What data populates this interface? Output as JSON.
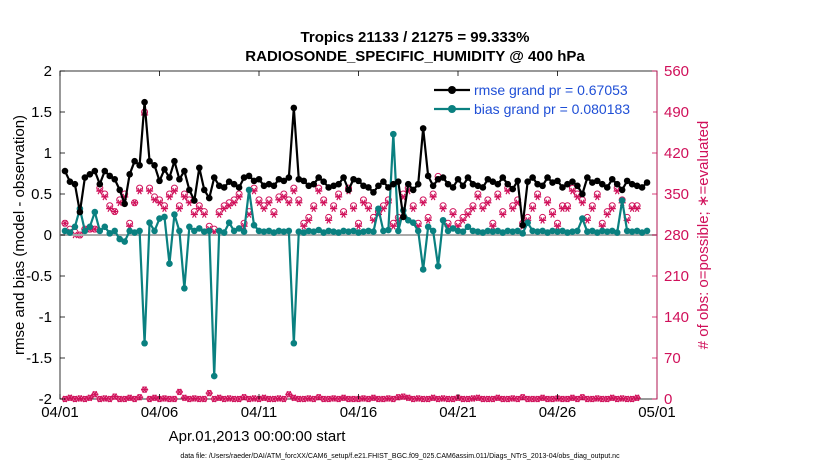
{
  "colors": {
    "rmse": "#000000",
    "bias": "#0a8080",
    "obs": "#d0105a",
    "zero_line": "#aaaaaa",
    "legend_text": "#1f4fd6",
    "right_axis": "#d0105a"
  },
  "chart_data": {
    "type": "line",
    "title": "Tropics 21133 / 21275 = 99.333%",
    "subtitle": "RADIOSONDE_SPECIFIC_HUMIDITY @ 400 hPa",
    "xlabel": "Apr.01,2013 00:00:00 start",
    "ylabel": "rmse and bias (model - observation)",
    "y2label": "# of obs: o=possible; ∗=evaluated",
    "xlim": [
      0,
      30
    ],
    "ylim": [
      -2,
      2
    ],
    "y2lim": [
      0,
      560
    ],
    "x_ticks": [
      0,
      5,
      10,
      15,
      20,
      25,
      30
    ],
    "x_tick_labels": [
      "04/01",
      "04/06",
      "04/11",
      "04/16",
      "04/21",
      "04/26",
      "05/01"
    ],
    "y_ticks": [
      -2,
      -1.5,
      -1,
      -0.5,
      0,
      0.5,
      1,
      1.5,
      2
    ],
    "y_tick_labels": [
      "-2",
      "-1.5",
      "-1",
      "-0.5",
      "0",
      "0.5",
      "1",
      "1.5",
      "2"
    ],
    "y2_ticks": [
      0,
      70,
      140,
      210,
      280,
      350,
      420,
      490,
      560
    ],
    "y2_tick_labels": [
      "0",
      "70",
      "140",
      "210",
      "280",
      "350",
      "420",
      "490",
      "560"
    ],
    "legend": {
      "rmse": "rmse grand pr = 0.67053",
      "bias": "bias grand pr = 0.080183"
    },
    "x": [
      0.25,
      0.5,
      0.75,
      1,
      1.25,
      1.5,
      1.75,
      2,
      2.25,
      2.5,
      2.75,
      3,
      3.25,
      3.5,
      3.75,
      4,
      4.25,
      4.5,
      4.75,
      5,
      5.25,
      5.5,
      5.75,
      6,
      6.25,
      6.5,
      6.75,
      7,
      7.25,
      7.5,
      7.75,
      8,
      8.25,
      8.5,
      8.75,
      9,
      9.25,
      9.5,
      9.75,
      10,
      10.25,
      10.5,
      10.75,
      11,
      11.25,
      11.5,
      11.75,
      12,
      12.25,
      12.5,
      12.75,
      13,
      13.25,
      13.5,
      13.75,
      14,
      14.25,
      14.5,
      14.75,
      15,
      15.25,
      15.5,
      15.75,
      16,
      16.25,
      16.5,
      16.75,
      17,
      17.25,
      17.5,
      17.75,
      18,
      18.25,
      18.5,
      18.75,
      19,
      19.25,
      19.5,
      19.75,
      20,
      20.25,
      20.5,
      20.75,
      21,
      21.25,
      21.5,
      21.75,
      22,
      22.25,
      22.5,
      22.75,
      23,
      23.25,
      23.5,
      23.75,
      24,
      24.25,
      24.5,
      24.75,
      25,
      25.25,
      25.5,
      25.75,
      26,
      26.25,
      26.5,
      26.75,
      27,
      27.25,
      27.5,
      27.75,
      28,
      28.25,
      28.5,
      28.75,
      29,
      29.25,
      29.5
    ],
    "series": [
      {
        "name": "rmse",
        "values": [
          0.78,
          0.65,
          0.62,
          0.28,
          0.7,
          0.74,
          0.78,
          0.62,
          0.78,
          0.72,
          0.68,
          0.55,
          0.38,
          0.74,
          0.9,
          0.85,
          1.62,
          0.9,
          0.85,
          0.66,
          0.8,
          0.7,
          0.9,
          0.68,
          0.78,
          0.55,
          0.42,
          0.82,
          0.55,
          0.45,
          0.7,
          0.6,
          0.58,
          0.65,
          0.62,
          0.58,
          0.7,
          0.72,
          0.66,
          0.68,
          0.6,
          0.62,
          0.6,
          0.68,
          0.66,
          0.7,
          1.55,
          0.68,
          0.66,
          0.6,
          0.62,
          0.7,
          0.65,
          0.58,
          0.6,
          0.62,
          0.7,
          0.55,
          0.68,
          0.66,
          0.6,
          0.58,
          0.52,
          0.6,
          0.65,
          0.58,
          0.62,
          0.65,
          0.22,
          0.62,
          0.55,
          0.62,
          1.3,
          0.72,
          0.6,
          0.68,
          0.7,
          0.62,
          0.58,
          0.68,
          0.6,
          0.7,
          0.62,
          0.6,
          0.58,
          0.68,
          0.65,
          0.62,
          0.7,
          0.62,
          0.56,
          0.66,
          0.12,
          0.65,
          0.7,
          0.62,
          0.6,
          0.7,
          0.64,
          0.66,
          0.58,
          0.62,
          0.65,
          0.6,
          0.5,
          0.7,
          0.64,
          0.66,
          0.62,
          0.58,
          0.68,
          0.62,
          0.55,
          0.66,
          0.62,
          0.6,
          0.58,
          0.64
        ],
        "sizes_note": "x positions shared"
      },
      {
        "name": "bias",
        "values": [
          0.05,
          0.03,
          0.1,
          0.32,
          0.05,
          0.1,
          0.28,
          0.05,
          0.1,
          0.02,
          0.05,
          -0.05,
          -0.08,
          0.05,
          0.03,
          0.05,
          -1.32,
          0.15,
          0.05,
          0.2,
          0.22,
          -0.35,
          0.25,
          0.05,
          -0.65,
          0.1,
          0.05,
          0.08,
          0.04,
          0.05,
          -1.72,
          0.05,
          0.03,
          0.15,
          0.05,
          0.08,
          0.04,
          0.55,
          0.12,
          0.05,
          0.04,
          0.05,
          0.03,
          0.05,
          0.04,
          0.05,
          -1.32,
          0.04,
          0.03,
          0.05,
          0.04,
          0.06,
          0.03,
          0.05,
          0.04,
          0.03,
          0.05,
          0.04,
          0.05,
          0.03,
          0.04,
          0.05,
          0.04,
          0.32,
          0.05,
          0.06,
          1.23,
          0.05,
          0.3,
          0.18,
          0.15,
          0.05,
          -0.42,
          0.1,
          0.05,
          -0.38,
          0.18,
          0.05,
          0.08,
          0.05,
          0.04,
          0.1,
          0.05,
          0.04,
          0.03,
          0.05,
          0.04,
          0.05,
          0.03,
          0.05,
          0.04,
          0.05,
          0.02,
          0.15,
          0.05,
          0.04,
          0.05,
          0.03,
          0.05,
          0.04,
          0.05,
          0.03,
          0.04,
          0.05,
          0.2,
          0.04,
          0.05,
          0.03,
          0.05,
          0.04,
          0.05,
          0.03,
          0.42,
          0.05,
          0.04,
          0.05,
          0.03,
          0.05
        ],
        "sizes_note": "x positions shared"
      }
    ],
    "obs_possible": [
      300,
      290,
      285,
      280,
      290,
      290,
      290,
      360,
      350,
      330,
      320,
      340,
      350,
      300,
      335,
      360,
      490,
      360,
      345,
      340,
      330,
      350,
      360,
      330,
      350,
      340,
      320,
      330,
      320,
      295,
      290,
      320,
      330,
      335,
      340,
      350,
      300,
      320,
      360,
      340,
      330,
      340,
      320,
      345,
      350,
      340,
      360,
      340,
      300,
      310,
      330,
      360,
      340,
      310,
      330,
      350,
      320,
      360,
      330,
      300,
      340,
      330,
      310,
      320,
      330,
      340,
      300,
      310,
      350,
      360,
      330,
      300,
      340,
      310,
      350,
      380,
      330,
      300,
      320,
      300,
      310,
      320,
      330,
      350,
      330,
      340,
      300,
      350,
      320,
      360,
      330,
      340,
      300,
      310,
      330,
      350,
      310,
      340,
      320,
      300,
      330,
      330,
      360,
      350,
      340,
      310,
      330,
      350,
      300,
      320,
      330,
      360,
      340,
      310,
      330,
      330
    ],
    "obs_evaluated": [
      300,
      285,
      280,
      280,
      290,
      290,
      290,
      355,
      345,
      325,
      320,
      335,
      345,
      295,
      335,
      355,
      485,
      355,
      340,
      335,
      325,
      345,
      355,
      325,
      345,
      335,
      315,
      325,
      315,
      290,
      285,
      315,
      325,
      330,
      335,
      345,
      295,
      315,
      355,
      335,
      325,
      335,
      315,
      340,
      345,
      335,
      355,
      335,
      295,
      305,
      325,
      355,
      335,
      305,
      325,
      345,
      315,
      355,
      325,
      295,
      335,
      325,
      305,
      315,
      325,
      335,
      295,
      305,
      345,
      355,
      325,
      295,
      335,
      305,
      345,
      375,
      325,
      295,
      315,
      295,
      305,
      315,
      325,
      345,
      325,
      335,
      295,
      345,
      315,
      355,
      325,
      335,
      295,
      305,
      325,
      345,
      305,
      335,
      315,
      295,
      325,
      325,
      355,
      345,
      335,
      305,
      325,
      345,
      295,
      315,
      325,
      355,
      335,
      305,
      325,
      325
    ],
    "obs_possible_rejected": [
      0,
      2,
      0,
      1,
      0,
      2,
      8,
      0,
      1,
      0,
      4,
      0,
      0,
      2,
      0,
      3,
      16,
      0,
      2,
      0,
      1,
      0,
      0,
      12,
      2,
      0,
      1,
      0,
      0,
      10,
      0,
      2,
      0,
      1,
      0,
      0,
      3,
      0,
      1,
      0,
      2,
      0,
      0,
      1,
      0,
      8,
      2,
      0,
      0,
      1,
      0,
      3,
      0,
      0,
      1,
      0,
      2,
      0,
      0,
      0,
      1,
      0,
      2,
      0,
      0,
      1,
      0,
      3,
      4,
      2,
      0,
      1,
      0,
      0,
      2,
      0,
      1,
      0,
      0,
      2,
      0,
      0,
      1,
      2,
      0,
      0,
      0,
      2,
      0,
      0,
      1,
      0,
      3,
      0,
      0,
      0,
      2,
      0,
      0,
      1,
      0,
      0,
      2,
      0,
      3,
      0,
      0,
      1,
      0,
      0,
      2,
      0,
      1,
      0,
      0,
      2
    ]
  },
  "footer": {
    "datafile": "data file: /Users/raeder/DAI/ATM_forcXX/CAM6_setup/f.e21.FHIST_BGC.f09_025.CAM6assim.011/Diags_NTrS_2013-04/obs_diag_output.nc"
  }
}
